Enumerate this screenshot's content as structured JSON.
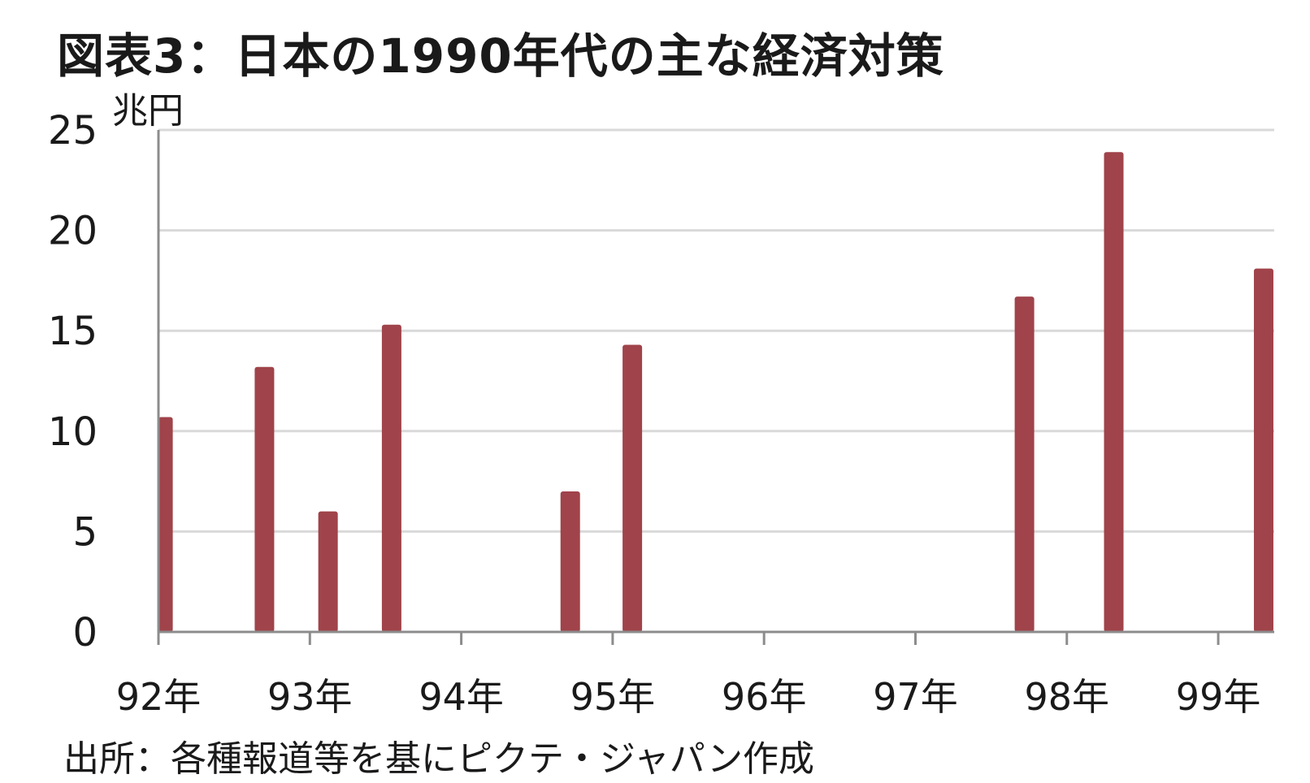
{
  "chart_data": {
    "type": "bar",
    "title": "図表3：日本の1990年代の主な経済対策",
    "ylabel": "兆円",
    "source": "出所：各種報道等を基にピクテ・ジャパン作成",
    "ylim": [
      0,
      25
    ],
    "yticks": [
      0,
      5,
      10,
      15,
      20,
      25
    ],
    "xlim": [
      1992.0,
      1999.37
    ],
    "xticks": [
      {
        "value": 1992,
        "label": "92年"
      },
      {
        "value": 1993,
        "label": "93年"
      },
      {
        "value": 1994,
        "label": "94年"
      },
      {
        "value": 1995,
        "label": "95年"
      },
      {
        "value": 1996,
        "label": "96年"
      },
      {
        "value": 1997,
        "label": "97年"
      },
      {
        "value": 1998,
        "label": "98年"
      },
      {
        "value": 1999,
        "label": "99年"
      }
    ],
    "bar_color": "#a0434a",
    "grid": true,
    "series": [
      {
        "points": [
          {
            "x": 1992.03,
            "y": 10.7
          },
          {
            "x": 1992.7,
            "y": 13.2
          },
          {
            "x": 1993.12,
            "y": 6.0
          },
          {
            "x": 1993.54,
            "y": 15.3
          },
          {
            "x": 1994.72,
            "y": 7.0
          },
          {
            "x": 1995.13,
            "y": 14.3
          },
          {
            "x": 1997.72,
            "y": 16.7
          },
          {
            "x": 1998.31,
            "y": 23.9
          },
          {
            "x": 1999.3,
            "y": 18.1
          }
        ]
      }
    ]
  }
}
